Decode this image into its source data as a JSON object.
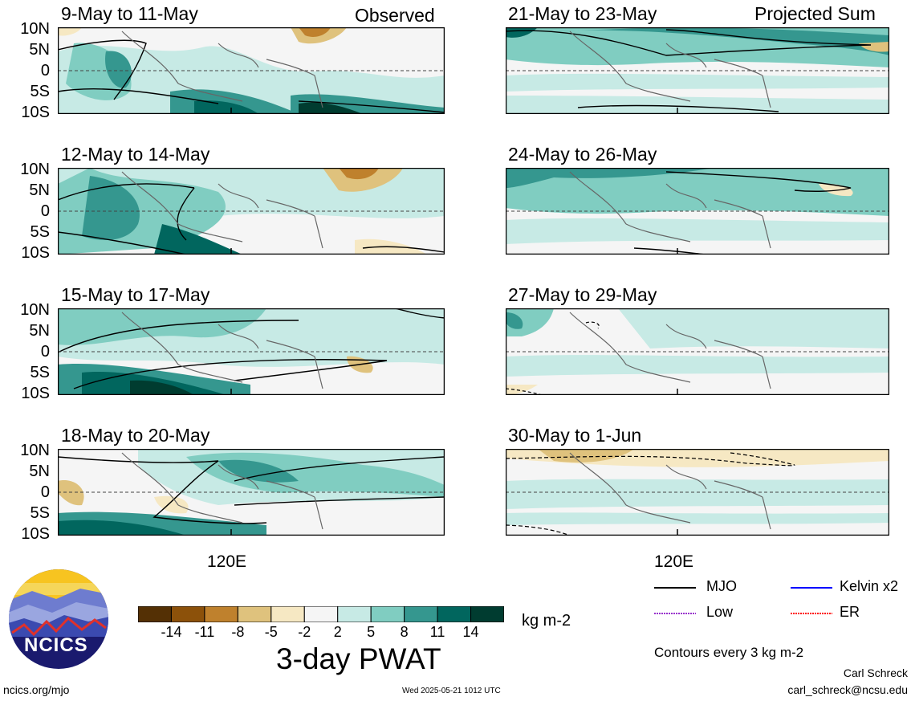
{
  "panel_tags": {
    "observed": "Observed",
    "projected": "Projected Sum"
  },
  "panels": [
    {
      "id": "p1",
      "title": "9-May to 11-May"
    },
    {
      "id": "p2",
      "title": "12-May to 14-May"
    },
    {
      "id": "p3",
      "title": "15-May to 17-May"
    },
    {
      "id": "p4",
      "title": "18-May to 20-May"
    },
    {
      "id": "p5",
      "title": "21-May to 23-May"
    },
    {
      "id": "p6",
      "title": "24-May to 26-May"
    },
    {
      "id": "p7",
      "title": "27-May to 29-May"
    },
    {
      "id": "p8",
      "title": "30-May to 1-Jun"
    }
  ],
  "y_ticks": [
    "10N",
    "5N",
    "0",
    "5S",
    "10S"
  ],
  "x_tick": "120E",
  "colorbar": {
    "tick_labels": [
      "-14",
      "-11",
      "-8",
      "-5",
      "-2",
      "2",
      "5",
      "8",
      "11",
      "14"
    ],
    "colors": [
      "#543005",
      "#8c510a",
      "#bf812d",
      "#dfc27d",
      "#f6e8c3",
      "#f5f5f5",
      "#c7eae5",
      "#80cdc1",
      "#35978f",
      "#01665e",
      "#003c30"
    ],
    "units": "kg m-2",
    "title": "3-day PWAT"
  },
  "legend": {
    "items": [
      {
        "label": "MJO",
        "color": "#000000"
      },
      {
        "label": "Kelvin x2",
        "color": "#0000ff"
      },
      {
        "label": "Low",
        "color": "#9933cc"
      },
      {
        "label": "ER",
        "color": "#ff0000"
      }
    ],
    "note": "Contours every 3 kg m-2"
  },
  "logo": {
    "text": "NCICS"
  },
  "footer": {
    "url": "ncics.org/mjo",
    "timestamp": "Wed 2025-05-21 1012 UTC",
    "author": "Carl Schreck",
    "email": "carl_schreck@ncsu.edu"
  }
}
